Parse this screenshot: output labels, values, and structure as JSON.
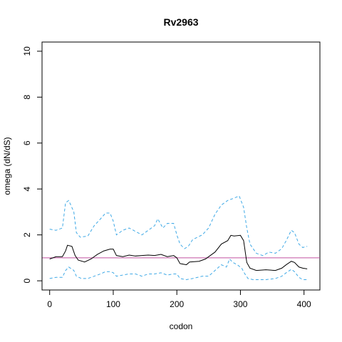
{
  "chart_data": {
    "type": "line",
    "title": "Rv2963",
    "xlabel": "codon",
    "ylabel": "omega (dN/dS)",
    "xlim": [
      -12,
      425
    ],
    "ylim": [
      -0.4,
      10.4
    ],
    "x_ticks": [
      0,
      100,
      200,
      300,
      400
    ],
    "y_ticks": [
      0,
      2,
      4,
      6,
      8,
      10
    ],
    "reference_line": {
      "y": 1,
      "color": "#c050a0"
    },
    "series": [
      {
        "style": "solid",
        "color": "#000000",
        "points": [
          [
            0,
            0.95
          ],
          [
            10,
            1.05
          ],
          [
            20,
            1.05
          ],
          [
            25,
            1.3
          ],
          [
            28,
            1.55
          ],
          [
            35,
            1.5
          ],
          [
            40,
            1.1
          ],
          [
            45,
            0.9
          ],
          [
            55,
            0.82
          ],
          [
            65,
            0.95
          ],
          [
            75,
            1.15
          ],
          [
            85,
            1.3
          ],
          [
            95,
            1.38
          ],
          [
            100,
            1.38
          ],
          [
            105,
            1.1
          ],
          [
            115,
            1.05
          ],
          [
            125,
            1.12
          ],
          [
            135,
            1.08
          ],
          [
            145,
            1.1
          ],
          [
            155,
            1.12
          ],
          [
            165,
            1.1
          ],
          [
            175,
            1.15
          ],
          [
            185,
            1.05
          ],
          [
            195,
            1.1
          ],
          [
            200,
            1.0
          ],
          [
            205,
            0.75
          ],
          [
            215,
            0.7
          ],
          [
            220,
            0.82
          ],
          [
            235,
            0.85
          ],
          [
            245,
            0.95
          ],
          [
            260,
            1.25
          ],
          [
            270,
            1.6
          ],
          [
            280,
            1.75
          ],
          [
            285,
            1.98
          ],
          [
            290,
            1.95
          ],
          [
            300,
            1.98
          ],
          [
            305,
            1.75
          ],
          [
            310,
            0.8
          ],
          [
            315,
            0.55
          ],
          [
            325,
            0.45
          ],
          [
            340,
            0.48
          ],
          [
            355,
            0.45
          ],
          [
            365,
            0.55
          ],
          [
            372,
            0.7
          ],
          [
            380,
            0.85
          ],
          [
            385,
            0.8
          ],
          [
            392,
            0.6
          ],
          [
            398,
            0.55
          ],
          [
            405,
            0.52
          ]
        ]
      },
      {
        "style": "dashed",
        "color": "#3fa9e6",
        "points": [
          [
            0,
            2.25
          ],
          [
            10,
            2.2
          ],
          [
            20,
            2.3
          ],
          [
            25,
            3.4
          ],
          [
            30,
            3.5
          ],
          [
            38,
            3.0
          ],
          [
            42,
            2.1
          ],
          [
            48,
            1.9
          ],
          [
            60,
            1.95
          ],
          [
            70,
            2.4
          ],
          [
            80,
            2.7
          ],
          [
            88,
            2.95
          ],
          [
            95,
            2.95
          ],
          [
            100,
            2.6
          ],
          [
            105,
            2.0
          ],
          [
            115,
            2.2
          ],
          [
            125,
            2.3
          ],
          [
            135,
            2.15
          ],
          [
            145,
            2.0
          ],
          [
            155,
            2.2
          ],
          [
            165,
            2.4
          ],
          [
            170,
            2.7
          ],
          [
            178,
            2.3
          ],
          [
            185,
            2.5
          ],
          [
            195,
            2.5
          ],
          [
            200,
            2.0
          ],
          [
            205,
            1.6
          ],
          [
            212,
            1.4
          ],
          [
            218,
            1.5
          ],
          [
            225,
            1.8
          ],
          [
            240,
            2.0
          ],
          [
            250,
            2.3
          ],
          [
            260,
            2.9
          ],
          [
            270,
            3.3
          ],
          [
            280,
            3.5
          ],
          [
            290,
            3.6
          ],
          [
            298,
            3.7
          ],
          [
            305,
            3.2
          ],
          [
            310,
            2.3
          ],
          [
            315,
            1.6
          ],
          [
            325,
            1.2
          ],
          [
            335,
            1.1
          ],
          [
            345,
            1.25
          ],
          [
            355,
            1.2
          ],
          [
            365,
            1.4
          ],
          [
            372,
            1.75
          ],
          [
            380,
            2.2
          ],
          [
            385,
            2.1
          ],
          [
            392,
            1.6
          ],
          [
            398,
            1.45
          ],
          [
            405,
            1.5
          ]
        ]
      },
      {
        "style": "dashed",
        "color": "#3fa9e6",
        "points": [
          [
            0,
            0.1
          ],
          [
            10,
            0.15
          ],
          [
            20,
            0.15
          ],
          [
            25,
            0.45
          ],
          [
            30,
            0.6
          ],
          [
            38,
            0.45
          ],
          [
            42,
            0.2
          ],
          [
            50,
            0.1
          ],
          [
            60,
            0.1
          ],
          [
            70,
            0.2
          ],
          [
            80,
            0.3
          ],
          [
            88,
            0.4
          ],
          [
            95,
            0.4
          ],
          [
            100,
            0.35
          ],
          [
            105,
            0.2
          ],
          [
            115,
            0.25
          ],
          [
            125,
            0.3
          ],
          [
            135,
            0.3
          ],
          [
            145,
            0.2
          ],
          [
            155,
            0.3
          ],
          [
            165,
            0.3
          ],
          [
            175,
            0.35
          ],
          [
            185,
            0.25
          ],
          [
            195,
            0.3
          ],
          [
            200,
            0.3
          ],
          [
            205,
            0.1
          ],
          [
            215,
            0.05
          ],
          [
            225,
            0.1
          ],
          [
            240,
            0.2
          ],
          [
            250,
            0.2
          ],
          [
            260,
            0.45
          ],
          [
            270,
            0.7
          ],
          [
            278,
            0.6
          ],
          [
            283,
            0.95
          ],
          [
            288,
            0.8
          ],
          [
            295,
            0.7
          ],
          [
            302,
            0.55
          ],
          [
            307,
            0.3
          ],
          [
            312,
            0.1
          ],
          [
            320,
            0.05
          ],
          [
            340,
            0.05
          ],
          [
            355,
            0.1
          ],
          [
            365,
            0.2
          ],
          [
            372,
            0.35
          ],
          [
            380,
            0.5
          ],
          [
            385,
            0.4
          ],
          [
            392,
            0.15
          ],
          [
            398,
            0.05
          ],
          [
            405,
            0.05
          ]
        ]
      }
    ]
  }
}
